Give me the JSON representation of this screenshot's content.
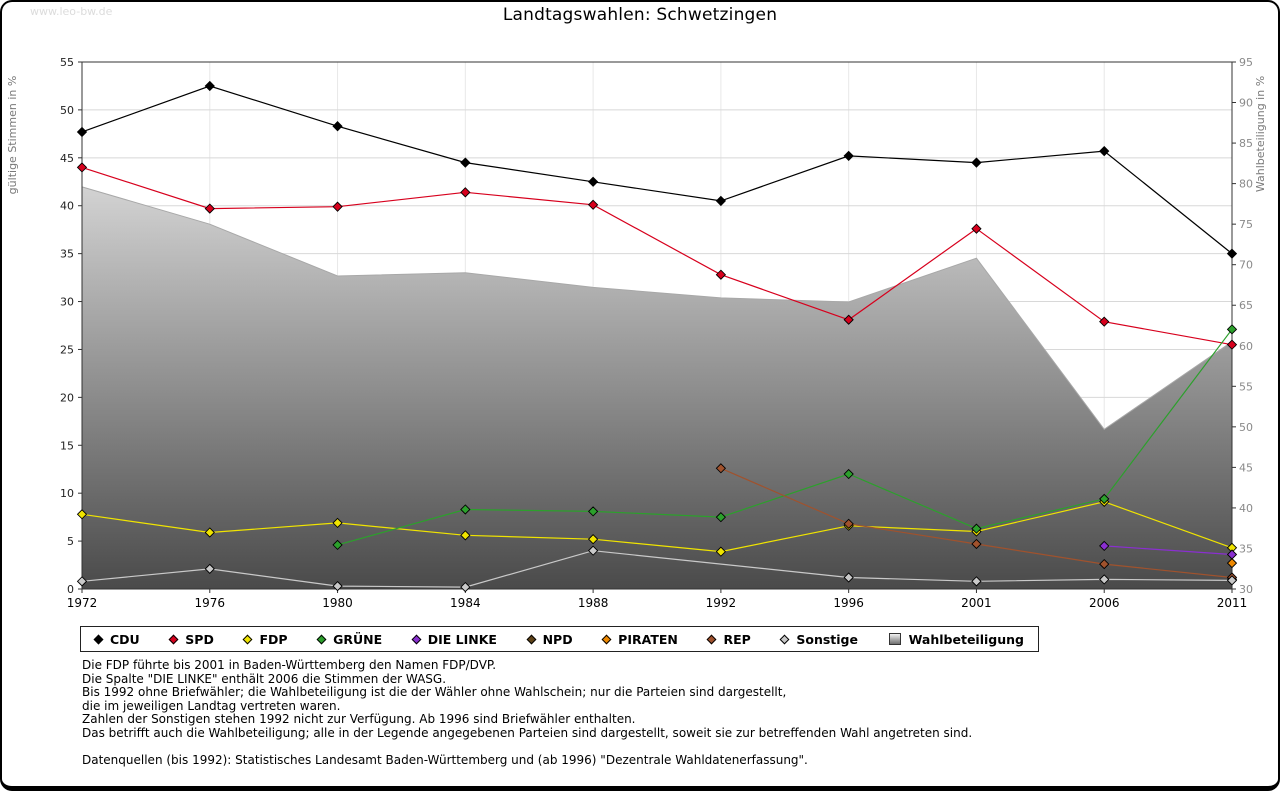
{
  "watermark": "www.leo-bw.de",
  "title": "Landtagswahlen: Schwetzingen",
  "chart_data": {
    "type": "line",
    "title": "Landtagswahlen: Schwetzingen",
    "categories": [
      "1972",
      "1976",
      "1980",
      "1984",
      "1988",
      "1992",
      "1996",
      "2001",
      "2006",
      "2011"
    ],
    "ylabel_left": "gültige Stimmen in %",
    "ylabel_right": "Wahlbeteiligung in %",
    "ylim_left": [
      0,
      55
    ],
    "ylim_right": [
      30,
      95
    ],
    "ytick_step": 5,
    "grid": true,
    "legend_position": "bottom",
    "series": [
      {
        "name": "CDU",
        "color": "#000000",
        "axis": "left",
        "values": [
          47.7,
          52.5,
          48.3,
          44.5,
          42.5,
          40.5,
          45.2,
          44.5,
          45.7,
          35.0
        ]
      },
      {
        "name": "SPD",
        "color": "#d7001d",
        "axis": "left",
        "values": [
          44.0,
          39.7,
          39.9,
          41.4,
          40.1,
          32.8,
          28.1,
          37.6,
          27.9,
          25.5
        ]
      },
      {
        "name": "FDP",
        "color": "#f0e400",
        "axis": "left",
        "values": [
          7.8,
          5.9,
          6.9,
          5.6,
          5.2,
          3.9,
          6.6,
          6.0,
          9.1,
          4.3
        ]
      },
      {
        "name": "GRÜNE",
        "color": "#2ca02c",
        "axis": "left",
        "values": [
          null,
          null,
          4.6,
          8.3,
          8.1,
          7.5,
          12.0,
          6.3,
          9.4,
          27.1
        ]
      },
      {
        "name": "DIE LINKE",
        "color": "#8a2fd0",
        "axis": "left",
        "values": [
          null,
          null,
          null,
          null,
          null,
          null,
          null,
          null,
          4.5,
          3.6
        ]
      },
      {
        "name": "NPD",
        "color": "#5f4318",
        "axis": "left",
        "values": [
          null,
          null,
          null,
          null,
          null,
          null,
          null,
          null,
          null,
          1.0
        ]
      },
      {
        "name": "PIRATEN",
        "color": "#ee8800",
        "axis": "left",
        "values": [
          null,
          null,
          null,
          null,
          null,
          null,
          null,
          null,
          null,
          2.7
        ]
      },
      {
        "name": "REP",
        "color": "#a0522d",
        "axis": "left",
        "values": [
          null,
          null,
          null,
          null,
          null,
          12.6,
          6.8,
          4.7,
          2.6,
          1.2
        ]
      },
      {
        "name": "Sonstige",
        "color": "#c9c9c9",
        "axis": "left",
        "values": [
          0.8,
          2.1,
          0.3,
          0.2,
          4.0,
          null,
          1.2,
          0.8,
          1.0,
          0.9
        ]
      }
    ],
    "area": {
      "name": "Wahlbeteiligung",
      "axis": "right",
      "values": [
        79.6,
        75.0,
        68.6,
        69.0,
        67.2,
        65.9,
        65.4,
        70.8,
        49.7,
        60.5
      ],
      "fill_top": "#fdfdfd",
      "fill_bottom": "#4a4a4a"
    }
  },
  "legend": {
    "items": [
      {
        "label": "CDU",
        "color": "#000000",
        "shape": "diamond"
      },
      {
        "label": "SPD",
        "color": "#d7001d",
        "shape": "diamond"
      },
      {
        "label": "FDP",
        "color": "#f0e400",
        "shape": "diamond"
      },
      {
        "label": "GRÜNE",
        "color": "#2ca02c",
        "shape": "diamond"
      },
      {
        "label": "DIE LINKE",
        "color": "#8a2fd0",
        "shape": "diamond"
      },
      {
        "label": "NPD",
        "color": "#5f4318",
        "shape": "diamond"
      },
      {
        "label": "PIRATEN",
        "color": "#ee8800",
        "shape": "diamond"
      },
      {
        "label": "REP",
        "color": "#a0522d",
        "shape": "diamond"
      },
      {
        "label": "Sonstige",
        "color": "#c9c9c9",
        "shape": "diamond"
      },
      {
        "label": "Wahlbeteiligung",
        "color": "#b8b8b8",
        "shape": "square"
      }
    ]
  },
  "footnotes": [
    "Die FDP führte bis 2001 in Baden-Württemberg den Namen FDP/DVP.",
    "Die Spalte \"DIE LINKE\" enthält 2006 die Stimmen der WASG.",
    "Bis 1992 ohne Briefwähler; die Wahlbeteiligung ist die der Wähler ohne Wahlschein; nur die Parteien sind dargestellt,",
    "die im jeweiligen Landtag vertreten waren.",
    "Zahlen der Sonstigen stehen 1992 nicht zur Verfügung. Ab 1996 sind Briefwähler enthalten.",
    "Das betrifft auch die Wahlbeteiligung; alle in der Legende angegebenen Parteien sind dargestellt, soweit sie zur betreffenden Wahl angetreten sind.",
    "",
    "Datenquellen (bis 1992): Statistisches Landesamt Baden-Württemberg und (ab 1996) \"Dezentrale Wahldatenerfassung\"."
  ]
}
